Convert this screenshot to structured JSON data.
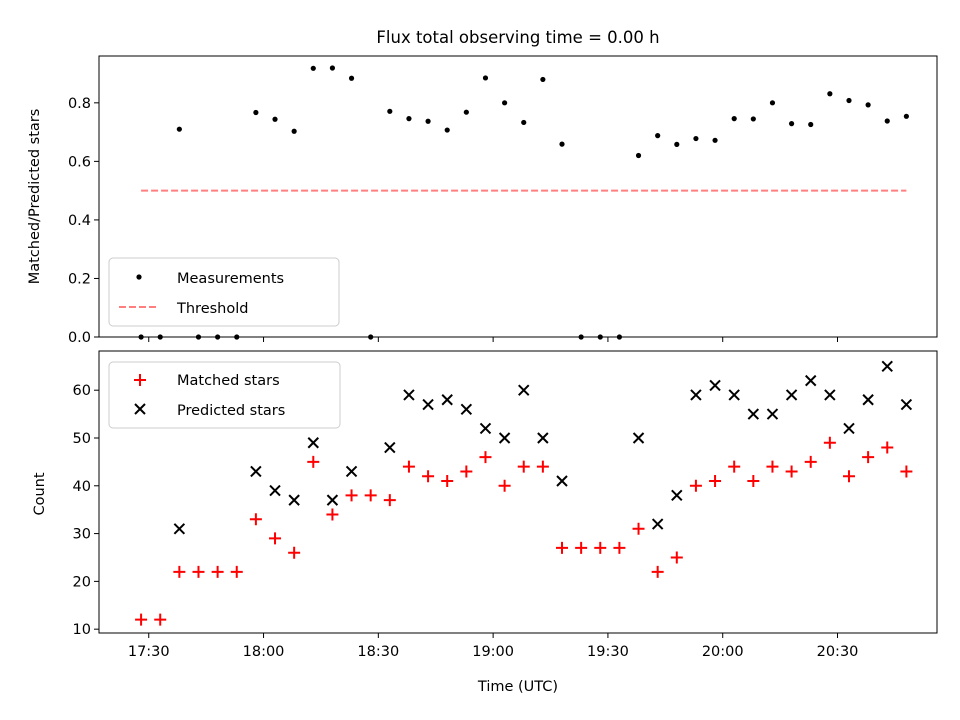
{
  "title": "Flux total observing time = 0.00 h",
  "colors": {
    "measurements": "#000000",
    "threshold": "#ff7f7f",
    "matched": "#ff0000",
    "predicted": "#000000"
  },
  "chart_data": [
    {
      "type": "scatter",
      "ylabel": "Matched/Predicted stars",
      "xlabel": "",
      "xlim": [
        "17:17",
        "20:56"
      ],
      "ylim": [
        0,
        0.96
      ],
      "yticks": [
        "0.0",
        "0.2",
        "0.4",
        "0.6",
        "0.8"
      ],
      "grid": false,
      "legend_position": "lower-left",
      "legend": [
        "Measurements",
        "Threshold"
      ],
      "series": [
        {
          "name": "Measurements",
          "marker": "dot",
          "x": [
            "17:28",
            "17:33",
            "17:38",
            "17:43",
            "17:48",
            "17:53",
            "17:58",
            "18:03",
            "18:08",
            "18:13",
            "18:18",
            "18:23",
            "18:28",
            "18:33",
            "18:38",
            "18:43",
            "18:48",
            "18:53",
            "18:58",
            "19:03",
            "19:08",
            "19:13",
            "19:18",
            "19:23",
            "19:28",
            "19:33",
            "19:38",
            "19:43",
            "19:48",
            "19:53",
            "19:58",
            "20:03",
            "20:08",
            "20:13",
            "20:18",
            "20:23",
            "20:28",
            "20:33",
            "20:38",
            "20:43",
            "20:48"
          ],
          "y": [
            0.0,
            0.0,
            0.71,
            0.0,
            0.0,
            0.0,
            0.767,
            0.744,
            0.703,
            0.918,
            0.919,
            0.884,
            0.0,
            0.771,
            0.746,
            0.737,
            0.707,
            0.768,
            0.885,
            0.8,
            0.733,
            0.88,
            0.659,
            0.0,
            0.0,
            0.0,
            0.62,
            0.688,
            0.658,
            0.678,
            0.672,
            0.746,
            0.745,
            0.8,
            0.729,
            0.726,
            0.831,
            0.808,
            0.793,
            0.738,
            0.754
          ]
        },
        {
          "name": "Threshold",
          "style": "dashed",
          "x": [
            "17:28",
            "20:48"
          ],
          "y": [
            0.5,
            0.5
          ]
        }
      ]
    },
    {
      "type": "scatter",
      "ylabel": "Count",
      "xlabel": "Time (UTC)",
      "xlim": [
        "17:17",
        "20:56"
      ],
      "ylim": [
        9.2,
        68.2
      ],
      "xticks": [
        "17:30",
        "18:00",
        "18:30",
        "19:00",
        "19:30",
        "20:00",
        "20:30"
      ],
      "yticks": [
        "10",
        "20",
        "30",
        "40",
        "50",
        "60"
      ],
      "grid": false,
      "legend_position": "upper-left",
      "legend": [
        "Matched stars",
        "Predicted stars"
      ],
      "series": [
        {
          "name": "Matched stars",
          "marker": "plus",
          "x": [
            "17:28",
            "17:33",
            "17:38",
            "17:43",
            "17:48",
            "17:53",
            "17:58",
            "18:03",
            "18:08",
            "18:13",
            "18:18",
            "18:23",
            "18:28",
            "18:33",
            "18:38",
            "18:43",
            "18:48",
            "18:53",
            "18:58",
            "19:03",
            "19:08",
            "19:13",
            "19:18",
            "19:23",
            "19:28",
            "19:33",
            "19:38",
            "19:43",
            "19:48",
            "19:53",
            "19:58",
            "20:03",
            "20:08",
            "20:13",
            "20:18",
            "20:23",
            "20:28",
            "20:33",
            "20:38",
            "20:43",
            "20:48"
          ],
          "y": [
            12,
            12,
            22,
            22,
            22,
            22,
            33,
            29,
            26,
            45,
            34,
            38,
            38,
            37,
            44,
            42,
            41,
            43,
            46,
            40,
            44,
            44,
            27,
            27,
            27,
            27,
            31,
            22,
            25,
            40,
            41,
            44,
            41,
            44,
            43,
            45,
            49,
            42,
            46,
            48,
            43
          ]
        },
        {
          "name": "Predicted stars",
          "marker": "x",
          "x": [
            "17:38",
            "17:58",
            "18:03",
            "18:08",
            "18:13",
            "18:18",
            "18:23",
            "18:33",
            "18:38",
            "18:43",
            "18:48",
            "18:53",
            "18:58",
            "19:03",
            "19:08",
            "19:13",
            "19:18",
            "19:38",
            "19:43",
            "19:48",
            "19:53",
            "19:58",
            "20:03",
            "20:08",
            "20:13",
            "20:18",
            "20:23",
            "20:28",
            "20:33",
            "20:38",
            "20:43",
            "20:48"
          ],
          "y": [
            31,
            43,
            39,
            37,
            49,
            37,
            43,
            48,
            59,
            57,
            58,
            56,
            52,
            50,
            60,
            50,
            41,
            50,
            32,
            38,
            59,
            61,
            59,
            55,
            55,
            59,
            62,
            59,
            52,
            58,
            65,
            57
          ]
        }
      ]
    }
  ]
}
